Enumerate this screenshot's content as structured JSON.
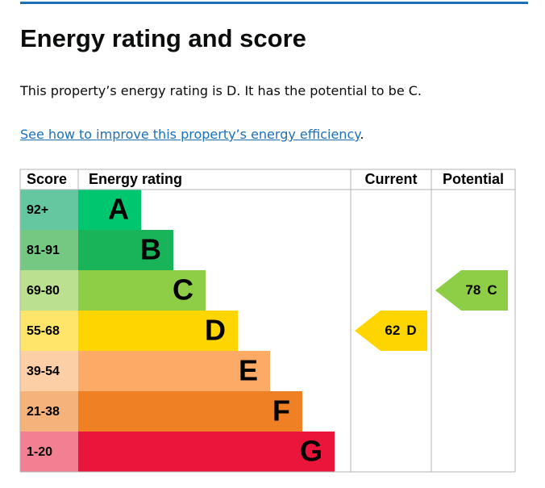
{
  "header": {
    "title": "Energy rating and score"
  },
  "summary": "This property’s energy rating is D. It has the potential to be C.",
  "link": {
    "text": "See how to improve this property’s energy efficiency",
    "after": "."
  },
  "table": {
    "columns": [
      "Score",
      "Energy rating",
      "Current",
      "Potential"
    ],
    "bands": [
      {
        "score": "92+",
        "letter": "A",
        "color": "#00c66f",
        "light": "#64c7a0"
      },
      {
        "score": "81-91",
        "letter": "B",
        "color": "#19b459",
        "light": "#75c882"
      },
      {
        "score": "69-80",
        "letter": "C",
        "color": "#8dce46",
        "light": "#bbe08f"
      },
      {
        "score": "55-68",
        "letter": "D",
        "color": "#ffd500",
        "light": "#ffe66a"
      },
      {
        "score": "39-54",
        "letter": "E",
        "color": "#fcaa65",
        "light": "#fdcfa6"
      },
      {
        "score": "21-38",
        "letter": "F",
        "color": "#ef8023",
        "light": "#f5b27a"
      },
      {
        "score": "1-20",
        "letter": "G",
        "color": "#e9153b",
        "light": "#f37f92"
      }
    ],
    "current": {
      "score": 62,
      "letter": "D",
      "band": 3
    },
    "potential": {
      "score": 78,
      "letter": "C",
      "band": 2
    }
  }
}
